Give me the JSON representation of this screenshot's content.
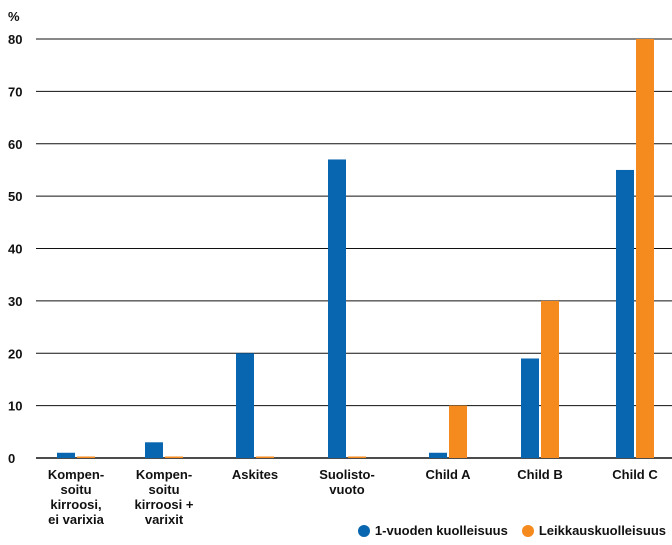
{
  "chart_data": {
    "type": "bar",
    "unit_label": "%",
    "ylim": [
      0,
      80
    ],
    "yticks": [
      0,
      10,
      20,
      30,
      40,
      50,
      60,
      70,
      80
    ],
    "grid": true,
    "legend_position": "bottom-right",
    "categories": [
      [
        "Kompen-",
        "soitu",
        "kirroosi,",
        "ei varixia"
      ],
      [
        "Kompen-",
        "soitu",
        "kirroosi +",
        "varixit"
      ],
      [
        "Askites"
      ],
      [
        "Suolisto-",
        "vuoto"
      ],
      [
        "Child A"
      ],
      [
        "Child B"
      ],
      [
        "Child C"
      ]
    ],
    "series": [
      {
        "name": "1-vuoden kuolleisuus",
        "color": "#0866b0",
        "values": [
          1,
          3,
          20,
          57,
          1,
          19,
          55
        ]
      },
      {
        "name": "Leikkauskuolleisuus",
        "color": "#f58a1f",
        "values": [
          0,
          0,
          0,
          0,
          10,
          30,
          80
        ]
      }
    ]
  }
}
